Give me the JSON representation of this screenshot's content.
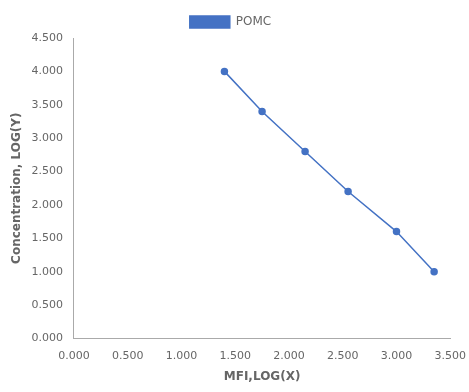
{
  "chart_data": {
    "type": "line",
    "x": [
      1.4,
      1.75,
      2.15,
      2.55,
      3.0,
      3.35
    ],
    "series": [
      {
        "name": "POMC",
        "color": "#4472C4",
        "marker": "circle",
        "values": [
          4.0,
          3.4,
          2.8,
          2.2,
          1.6,
          1.0
        ]
      }
    ],
    "xlabel": "MFI,LOG(X)",
    "ylabel": "Concentration, LOG(Y)",
    "xlim": [
      0.0,
      3.5
    ],
    "ylim": [
      0.0,
      4.5
    ],
    "xticks": [
      {
        "value": 0.0,
        "label": "0.000"
      },
      {
        "value": 0.5,
        "label": "0.500"
      },
      {
        "value": 1.0,
        "label": "1.000"
      },
      {
        "value": 1.5,
        "label": "1.500"
      },
      {
        "value": 2.0,
        "label": "2.000"
      },
      {
        "value": 2.5,
        "label": "2.500"
      },
      {
        "value": 3.0,
        "label": "3.000"
      },
      {
        "value": 3.5,
        "label": "3.500"
      }
    ],
    "yticks": [
      {
        "value": 0.0,
        "label": "0.000"
      },
      {
        "value": 0.5,
        "label": "0.500"
      },
      {
        "value": 1.0,
        "label": "1.000"
      },
      {
        "value": 1.5,
        "label": "1.500"
      },
      {
        "value": 2.0,
        "label": "2.000"
      },
      {
        "value": 2.5,
        "label": "2.500"
      },
      {
        "value": 3.0,
        "label": "3.000"
      },
      {
        "value": 3.5,
        "label": "3.500"
      },
      {
        "value": 4.0,
        "label": "4.000"
      },
      {
        "value": 4.5,
        "label": "4.500"
      }
    ],
    "grid": false,
    "legend": "top"
  }
}
